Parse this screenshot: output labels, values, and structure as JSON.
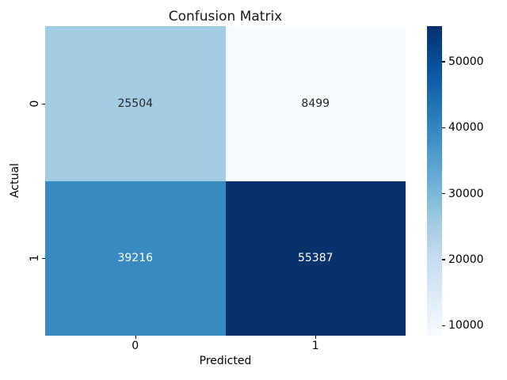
{
  "chart_data": {
    "type": "heatmap",
    "title": "Confusion Matrix",
    "xlabel": "Predicted",
    "ylabel": "Actual",
    "x_ticklabels": [
      "0",
      "1"
    ],
    "y_ticklabels": [
      "0",
      "1"
    ],
    "values": [
      [
        25504,
        8499
      ],
      [
        39216,
        55387
      ]
    ],
    "cells": [
      {
        "actual": "0",
        "predicted": "0",
        "value": "25504",
        "bg": "#a3cce3",
        "fg": "#262626"
      },
      {
        "actual": "0",
        "predicted": "1",
        "value": "8499",
        "bg": "#f7fbff",
        "fg": "#262626"
      },
      {
        "actual": "1",
        "predicted": "0",
        "value": "39216",
        "bg": "#3a8ac2",
        "fg": "#ffffff"
      },
      {
        "actual": "1",
        "predicted": "1",
        "value": "55387",
        "bg": "#08306b",
        "fg": "#ffffff"
      }
    ],
    "colormap": "Blues",
    "colorbar": {
      "vmin": 8499,
      "vmax": 55387,
      "ticks": [
        10000,
        20000,
        30000,
        40000,
        50000
      ],
      "gradient": [
        "#f7fbff 0%",
        "#deebf7 12.5%",
        "#c6dbef 25%",
        "#9ecae1 37.5%",
        "#6baed6 50%",
        "#4292c6 62.5%",
        "#2171b5 75%",
        "#08519c 87.5%",
        "#08306b 100%"
      ]
    },
    "layout": {
      "grid": false,
      "legend": false,
      "colorbar_position": "right"
    }
  }
}
